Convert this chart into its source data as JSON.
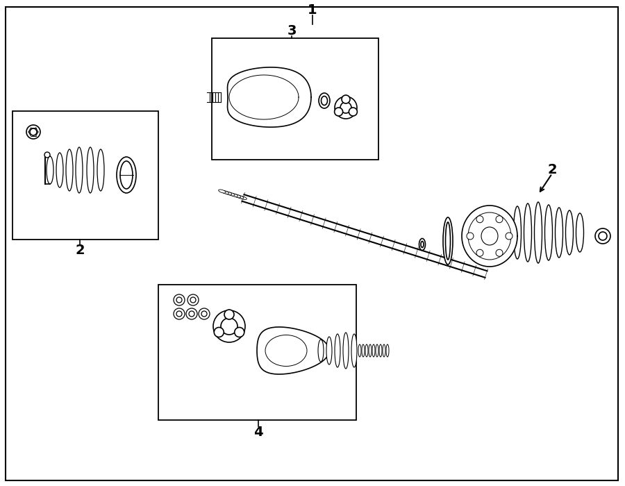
{
  "bg_color": "#ffffff",
  "line_color": "#000000",
  "label_1": "1",
  "label_2": "2",
  "label_3": "3",
  "label_4": "4",
  "label_fontsize": 14,
  "label_fontweight": "bold",
  "fig_width": 9.0,
  "fig_height": 7.0,
  "dpi": 100
}
